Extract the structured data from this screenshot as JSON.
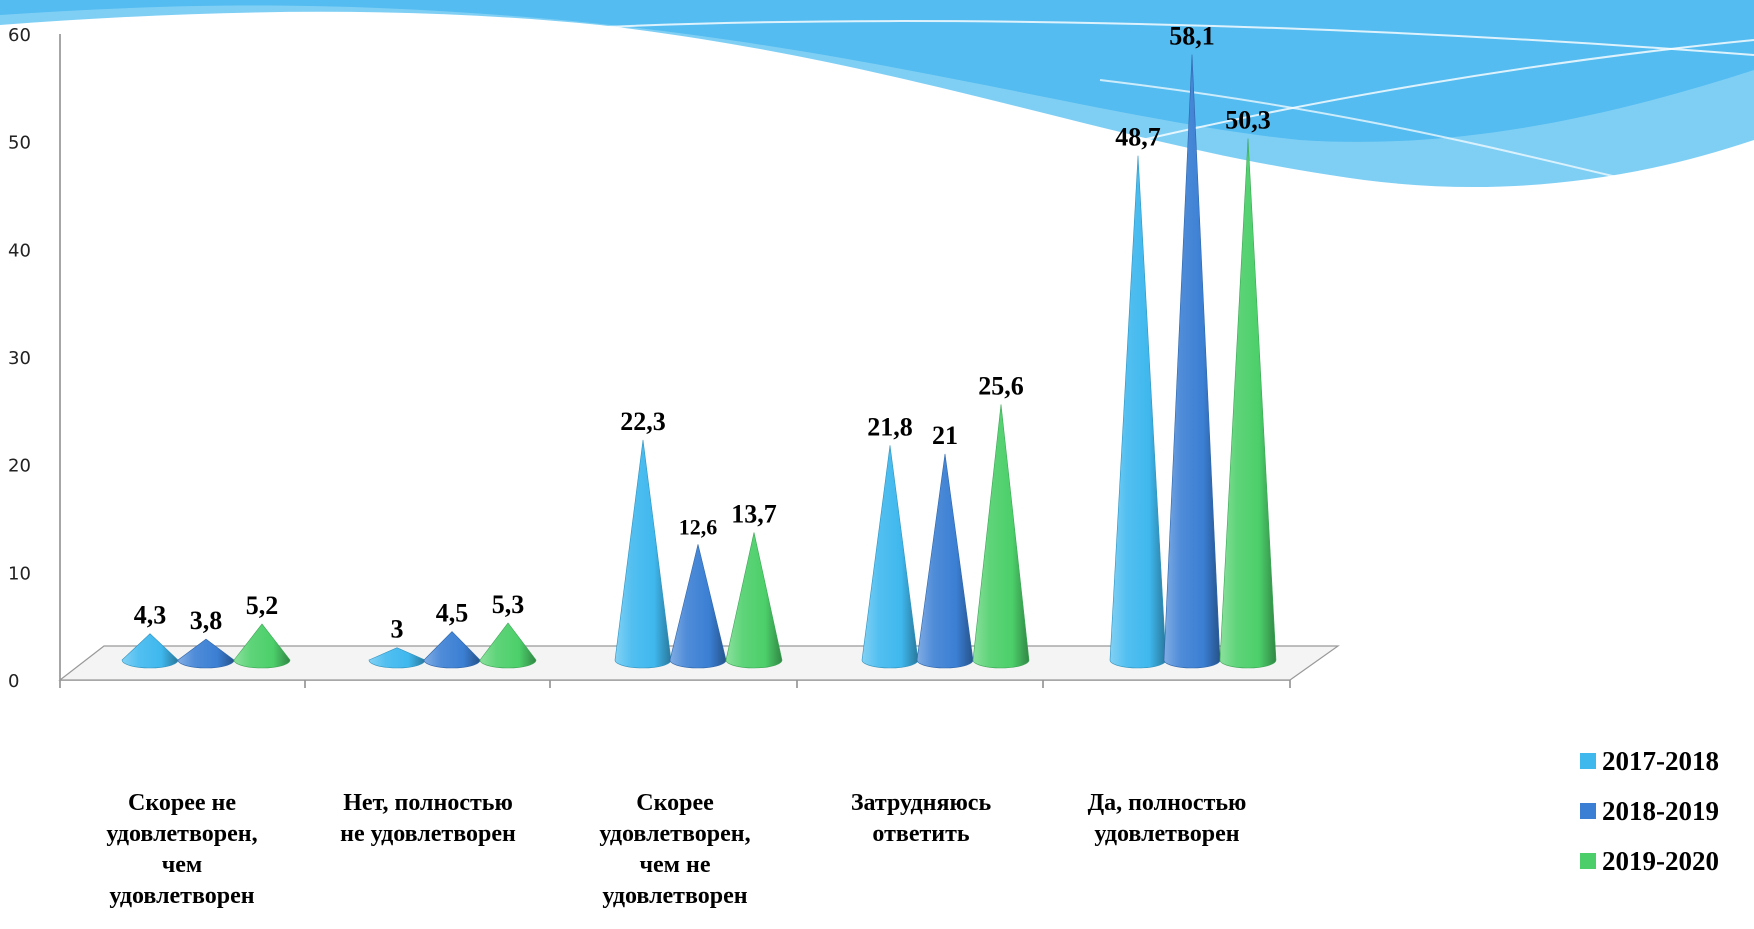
{
  "chart_data": {
    "type": "bar",
    "categories": [
      [
        "Скорее не",
        "удовлетворен,",
        "чем",
        "удовлетворен"
      ],
      [
        "Нет, полностью",
        "не удовлетворен"
      ],
      [
        "Скорее",
        "удовлетворен,",
        "чем не",
        "удовлетворен"
      ],
      [
        "Затрудняюсь",
        "ответить"
      ],
      [
        "Да, полностью",
        "удовлетворен"
      ]
    ],
    "series": [
      {
        "name": "2017-2018",
        "color": "#3fb8ee",
        "values": [
          4.3,
          3,
          22.3,
          21.8,
          48.7
        ],
        "labels": [
          "4,3",
          "3",
          "22,3",
          "21,8",
          "48,7"
        ]
      },
      {
        "name": "2018-2019",
        "color": "#3b7fd4",
        "values": [
          3.8,
          4.5,
          12.6,
          21,
          58.1
        ],
        "labels": [
          "3,8",
          "4,5",
          "12,6",
          "21",
          "58,1"
        ]
      },
      {
        "name": "2019-2020",
        "color": "#4ccf6a",
        "values": [
          5.2,
          5.3,
          13.7,
          25.6,
          50.3
        ],
        "labels": [
          "5,2",
          "5,3",
          "13,7",
          "25,6",
          "50,3"
        ]
      }
    ],
    "ylim": [
      0,
      60
    ],
    "yticks": [
      "0",
      "10",
      "20",
      "30",
      "40",
      "50",
      "60"
    ],
    "mark_shape": "cone",
    "legend_position": "bottom-right",
    "grid": false
  }
}
